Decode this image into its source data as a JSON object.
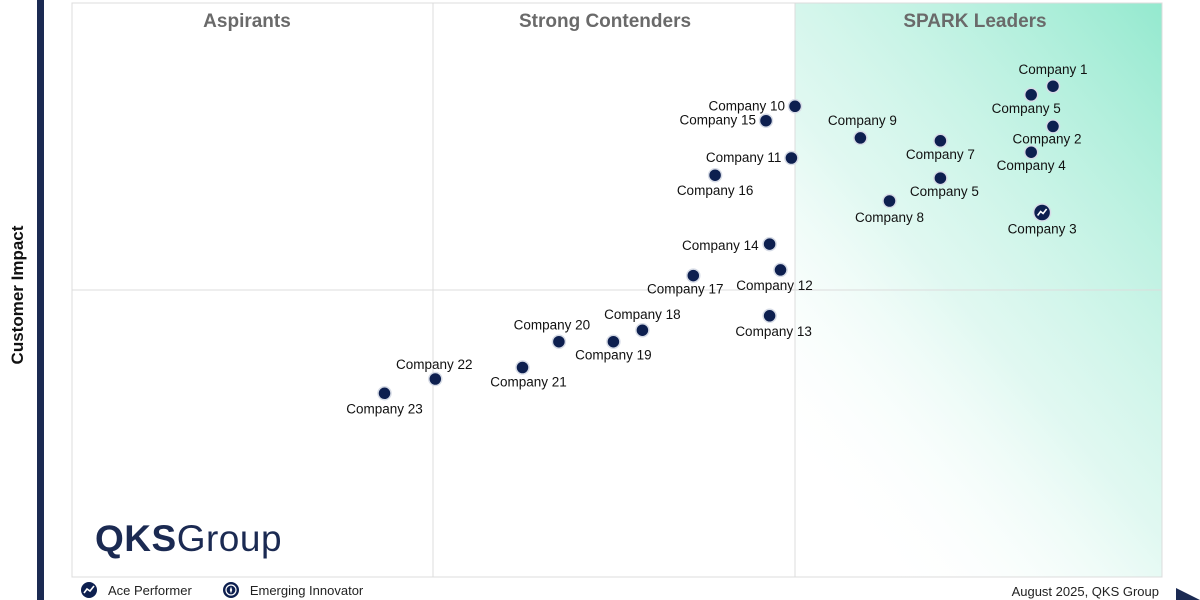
{
  "chart_data": {
    "type": "scatter",
    "title": "",
    "xlabel": "",
    "ylabel": "Customer Impact",
    "xlim": [
      0,
      3
    ],
    "ylim": [
      0,
      2
    ],
    "quadrants": [
      "Aspirants",
      "Strong Contenders",
      "SPARK Leaders"
    ],
    "points": [
      {
        "name": "Company 1",
        "x": 2.7,
        "y": 1.71,
        "type": "dot"
      },
      {
        "name": "Company 5",
        "x": 2.64,
        "y": 1.68,
        "type": "dot"
      },
      {
        "name": "Company 2",
        "x": 2.7,
        "y": 1.57,
        "type": "dot"
      },
      {
        "name": "Company 4",
        "x": 2.64,
        "y": 1.48,
        "type": "dot"
      },
      {
        "name": "Company 7",
        "x": 2.39,
        "y": 1.52,
        "type": "dot"
      },
      {
        "name": "Company 9",
        "x": 2.17,
        "y": 1.53,
        "type": "dot"
      },
      {
        "name": "Company 5",
        "x": 2.39,
        "y": 1.39,
        "type": "dot"
      },
      {
        "name": "Company 8",
        "x": 2.25,
        "y": 1.31,
        "type": "dot"
      },
      {
        "name": "Company 3",
        "x": 2.67,
        "y": 1.27,
        "type": "ace"
      },
      {
        "name": "Company 10",
        "x": 1.99,
        "y": 1.64,
        "type": "dot"
      },
      {
        "name": "Company 15",
        "x": 1.91,
        "y": 1.59,
        "type": "dot"
      },
      {
        "name": "Company 11",
        "x": 1.98,
        "y": 1.46,
        "type": "dot"
      },
      {
        "name": "Company 16",
        "x": 1.77,
        "y": 1.4,
        "type": "dot"
      },
      {
        "name": "Company 14",
        "x": 1.92,
        "y": 1.16,
        "type": "dot"
      },
      {
        "name": "Company 12",
        "x": 1.95,
        "y": 1.07,
        "type": "dot"
      },
      {
        "name": "Company 17",
        "x": 1.71,
        "y": 1.05,
        "type": "dot"
      },
      {
        "name": "Company 13",
        "x": 1.92,
        "y": 0.91,
        "type": "dot"
      },
      {
        "name": "Company 18",
        "x": 1.57,
        "y": 0.86,
        "type": "dot"
      },
      {
        "name": "Company 19",
        "x": 1.49,
        "y": 0.82,
        "type": "dot"
      },
      {
        "name": "Company 20",
        "x": 1.34,
        "y": 0.82,
        "type": "dot"
      },
      {
        "name": "Company 21",
        "x": 1.24,
        "y": 0.73,
        "type": "dot"
      },
      {
        "name": "Company 22",
        "x": 1.0,
        "y": 0.69,
        "type": "dot"
      },
      {
        "name": "Company 23",
        "x": 0.86,
        "y": 0.64,
        "type": "dot"
      }
    ],
    "legend": [
      {
        "label": "Ace Performer",
        "icon": "ace-performer-icon"
      },
      {
        "label": "Emerging Innovator",
        "icon": "emerging-innovator-icon"
      }
    ],
    "colors": {
      "dot": "#0d1f4f",
      "leader_gradient": "#8ee8cc",
      "grid": "#dddddd"
    }
  },
  "logo": {
    "strong": "QKS",
    "light": "Group"
  },
  "footnote": "August 2025, QKS Group"
}
